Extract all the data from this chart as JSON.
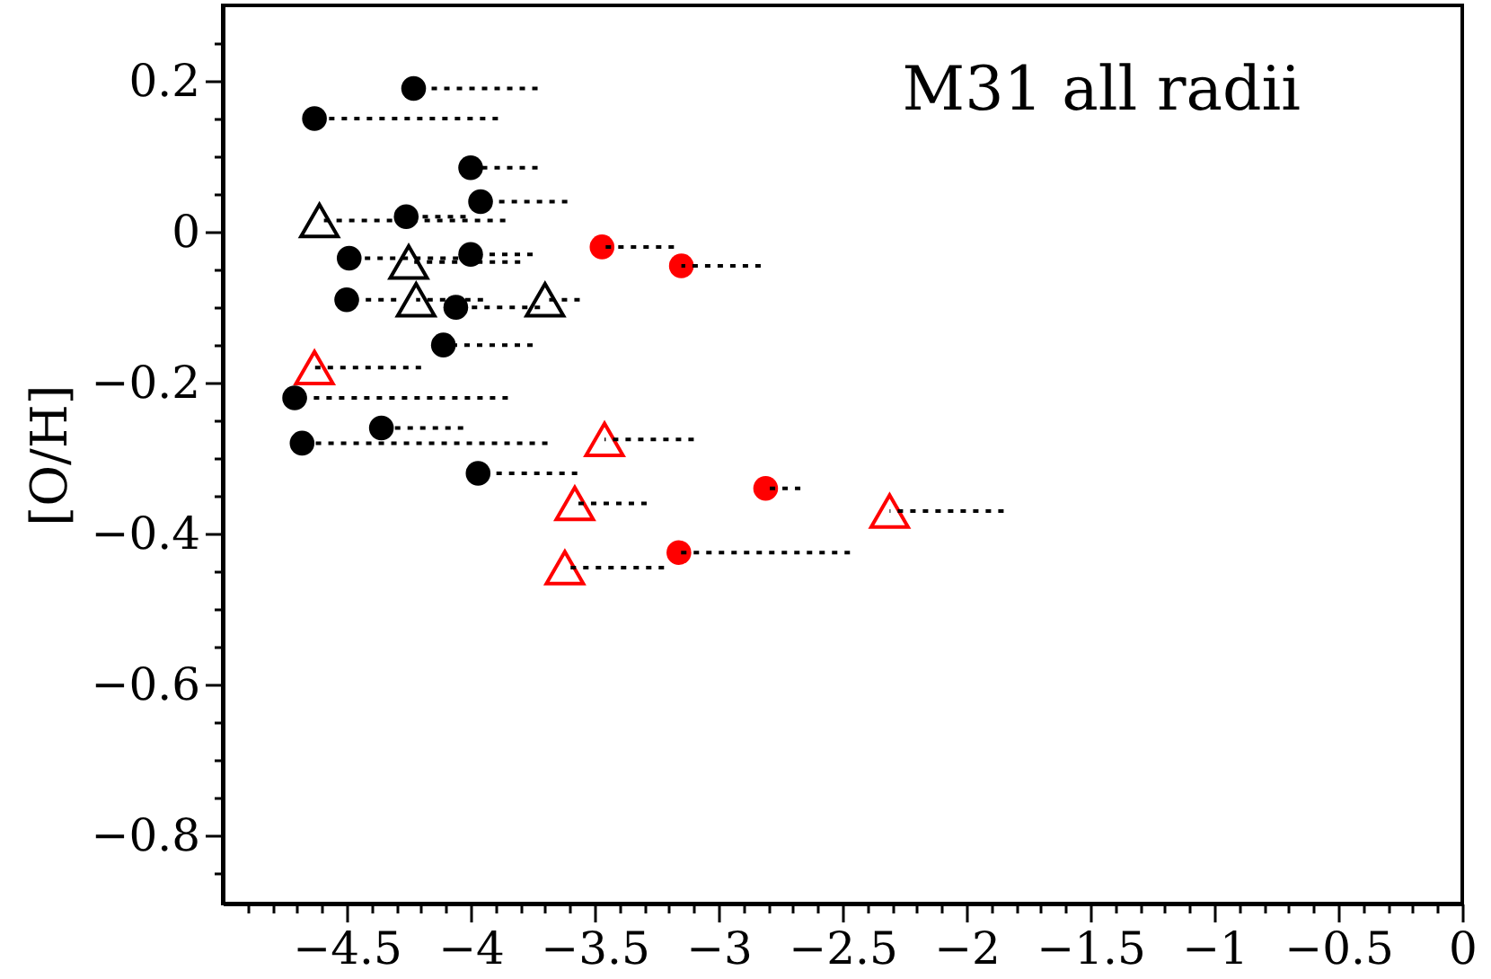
{
  "chart_data": {
    "type": "scatter",
    "ylabel": "[O/H]",
    "annotations": [
      "M31 all radii"
    ],
    "xlim": [
      -5,
      0
    ],
    "ylim": [
      -0.89,
      0.3
    ],
    "xticks": [
      {
        "value": -4.9,
        "label": null
      },
      {
        "value": -4.8,
        "label": null
      },
      {
        "value": -4.7,
        "label": null
      },
      {
        "value": -4.6,
        "label": null
      },
      -4.5,
      {
        "value": -4.4,
        "label": null
      },
      {
        "value": -4.3,
        "label": null
      },
      {
        "value": -4.2,
        "label": null
      },
      {
        "value": -4.1,
        "label": null
      },
      -4,
      {
        "value": -3.9,
        "label": null
      },
      {
        "value": -3.8,
        "label": null
      },
      {
        "value": -3.7,
        "label": null
      },
      {
        "value": -3.6,
        "label": null
      },
      -3.5,
      {
        "value": -3.4,
        "label": null
      },
      {
        "value": -3.3,
        "label": null
      },
      {
        "value": -3.2,
        "label": null
      },
      {
        "value": -3.1,
        "label": null
      },
      -3,
      {
        "value": -2.9,
        "label": null
      },
      {
        "value": -2.8,
        "label": null
      },
      {
        "value": -2.7,
        "label": null
      },
      {
        "value": -2.6,
        "label": null
      },
      -2.5,
      {
        "value": -2.4,
        "label": null
      },
      {
        "value": -2.3,
        "label": null
      },
      {
        "value": -2.2,
        "label": null
      },
      {
        "value": -2.1,
        "label": null
      },
      -2,
      {
        "value": -1.9,
        "label": null
      },
      {
        "value": -1.8,
        "label": null
      },
      {
        "value": -1.7,
        "label": null
      },
      {
        "value": -1.6,
        "label": null
      },
      -1.5,
      {
        "value": -1.4,
        "label": null
      },
      {
        "value": -1.3,
        "label": null
      },
      {
        "value": -1.2,
        "label": null
      },
      {
        "value": -1.1,
        "label": null
      },
      -1,
      {
        "value": -0.9,
        "label": null
      },
      {
        "value": -0.8,
        "label": null
      },
      {
        "value": -0.7,
        "label": null
      },
      {
        "value": -0.6,
        "label": null
      },
      -0.5,
      {
        "value": -0.4,
        "label": null
      },
      {
        "value": -0.3,
        "label": null
      },
      {
        "value": -0.2,
        "label": null
      },
      {
        "value": -0.1,
        "label": null
      },
      0
    ],
    "yticks": [
      {
        "value": -0.85,
        "label": null
      },
      -0.8,
      {
        "value": -0.75,
        "label": null
      },
      {
        "value": -0.7,
        "label": null
      },
      {
        "value": -0.65,
        "label": null
      },
      -0.6,
      {
        "value": -0.55,
        "label": null
      },
      {
        "value": -0.5,
        "label": null
      },
      {
        "value": -0.45,
        "label": null
      },
      -0.4,
      {
        "value": -0.35,
        "label": null
      },
      {
        "value": -0.3,
        "label": null
      },
      {
        "value": -0.25,
        "label": null
      },
      -0.2,
      {
        "value": -0.15,
        "label": null
      },
      {
        "value": -0.1,
        "label": null
      },
      {
        "value": -0.05,
        "label": null
      },
      0,
      {
        "value": 0.05,
        "label": null
      },
      {
        "value": 0.1,
        "label": null
      },
      {
        "value": 0.15,
        "label": null
      },
      0.2,
      {
        "value": 0.25,
        "label": null
      }
    ],
    "series": [
      {
        "color": "#000000",
        "marker": "circle",
        "x": [
          -4.23,
          -4.63,
          -4.0,
          -3.96,
          -4.26,
          -4.49,
          -4.0,
          -4.5,
          -4.06,
          -4.11,
          -4.71,
          -4.36,
          -4.68,
          -3.97
        ],
        "values": [
          0.19,
          0.15,
          0.085,
          0.04,
          0.02,
          -0.035,
          -0.03,
          -0.09,
          -0.1,
          -0.15,
          -0.22,
          -0.26,
          -0.28,
          -0.32
        ],
        "xerrors": [
          [
            -4.23,
            -3.73
          ],
          [
            -4.63,
            -3.89
          ],
          [
            -4.0,
            -3.73
          ],
          [
            -3.96,
            -3.61
          ],
          [
            -4.26,
            -4.02
          ],
          [
            -4.49,
            -4.05
          ],
          [
            -4.0,
            -3.75
          ],
          [
            -4.5,
            -4.3
          ],
          [
            -4.06,
            -3.72
          ],
          [
            -4.11,
            -3.75
          ],
          [
            -4.71,
            -3.85
          ],
          [
            -4.36,
            -4.03
          ],
          [
            -4.68,
            -3.69
          ],
          [
            -3.97,
            -3.57
          ]
        ]
      },
      {
        "color": "#000000",
        "marker": "triangle",
        "x": [
          -4.61,
          -4.25,
          -4.22,
          -3.7
        ],
        "values": [
          0.015,
          -0.04,
          -0.09,
          -0.09
        ],
        "xerrors": [
          [
            -4.61,
            -3.86
          ],
          [
            -4.25,
            -3.8
          ],
          [
            -4.22,
            -3.95
          ],
          [
            -3.7,
            -3.56
          ]
        ]
      },
      {
        "color": "#ff0000",
        "marker": "circle",
        "x": [
          -3.47,
          -3.15,
          -2.81,
          -3.16
        ],
        "values": [
          -0.02,
          -0.045,
          -0.34,
          -0.425
        ],
        "xerrors": [
          [
            -3.47,
            -3.18
          ],
          [
            -3.15,
            -2.83
          ],
          [
            -2.81,
            -2.67
          ],
          [
            -3.16,
            -2.47
          ]
        ]
      },
      {
        "color": "#ff0000",
        "marker": "triangle",
        "x": [
          -4.63,
          -3.46,
          -3.58,
          -2.31,
          -3.62
        ],
        "values": [
          -0.18,
          -0.275,
          -0.36,
          -0.37,
          -0.445
        ],
        "xerrors": [
          [
            -4.63,
            -4.2
          ],
          [
            -3.46,
            -3.1
          ],
          [
            -3.58,
            -3.29
          ],
          [
            -2.31,
            -1.85
          ],
          [
            -3.62,
            -3.22
          ]
        ]
      }
    ]
  }
}
